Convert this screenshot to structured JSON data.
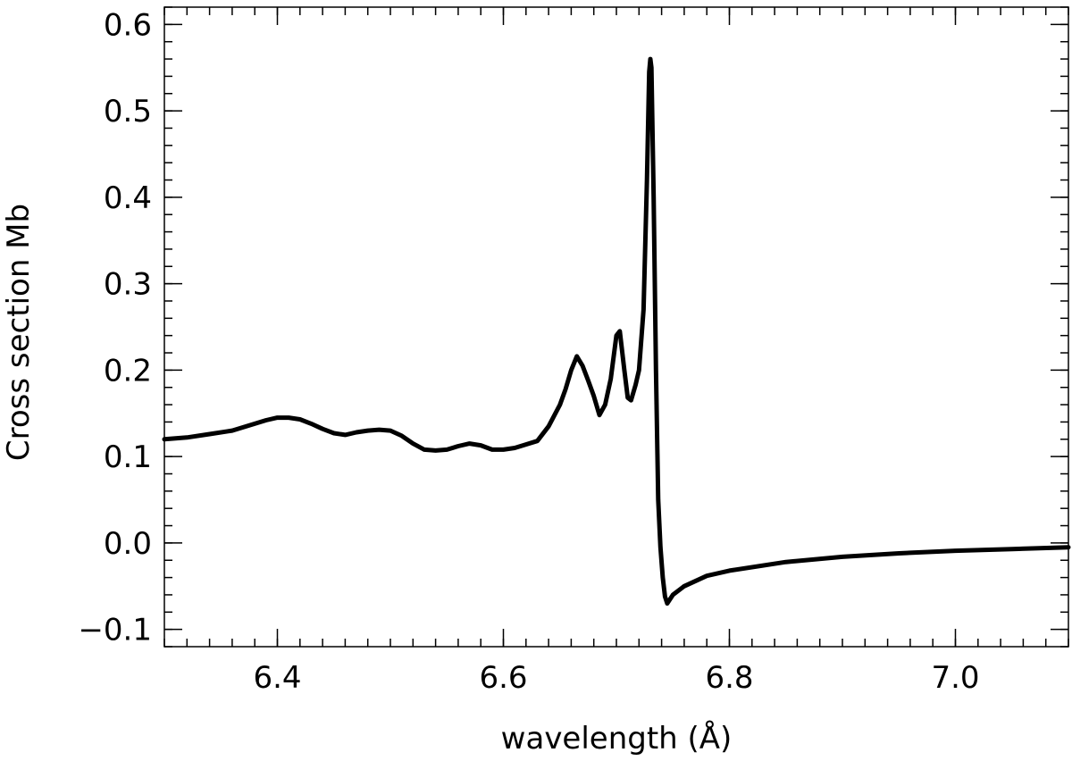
{
  "chart_data": {
    "type": "line",
    "title": "",
    "xlabel": "wavelength (Å)",
    "ylabel": "Cross section Mb",
    "xlim": [
      6.3,
      7.1
    ],
    "ylim": [
      -0.12,
      0.62
    ],
    "x_ticks": [
      6.4,
      6.6,
      6.8,
      7.0
    ],
    "x_tick_labels": [
      "6.4",
      "6.6",
      "6.8",
      "7.0"
    ],
    "x_minor_step": 0.02,
    "y_ticks": [
      -0.1,
      0.0,
      0.1,
      0.2,
      0.3,
      0.4,
      0.5,
      0.6
    ],
    "y_tick_labels": [
      "−0.1",
      "0.0",
      "0.1",
      "0.2",
      "0.3",
      "0.4",
      "0.5",
      "0.6"
    ],
    "y_minor_step": 0.02,
    "grid": false,
    "legend": "none",
    "line_color": "#000000",
    "series": [
      {
        "x": [
          6.3,
          6.32,
          6.34,
          6.36,
          6.38,
          6.39,
          6.4,
          6.41,
          6.42,
          6.43,
          6.44,
          6.45,
          6.46,
          6.47,
          6.48,
          6.49,
          6.5,
          6.51,
          6.52,
          6.53,
          6.54,
          6.55,
          6.56,
          6.57,
          6.58,
          6.59,
          6.6,
          6.61,
          6.62,
          6.63,
          6.64,
          6.65,
          6.655,
          6.66,
          6.665,
          6.67,
          6.675,
          6.68,
          6.685,
          6.69,
          6.695,
          6.7,
          6.703,
          6.707,
          6.71,
          6.713,
          6.717,
          6.72,
          6.724,
          6.727,
          6.729,
          6.73,
          6.731,
          6.733,
          6.735,
          6.737,
          6.739,
          6.741,
          6.743,
          6.745,
          6.75,
          6.76,
          6.78,
          6.8,
          6.85,
          6.9,
          6.95,
          7.0,
          7.05,
          7.1
        ],
        "y": [
          0.12,
          0.122,
          0.126,
          0.13,
          0.138,
          0.142,
          0.145,
          0.145,
          0.143,
          0.138,
          0.132,
          0.127,
          0.125,
          0.128,
          0.13,
          0.131,
          0.13,
          0.124,
          0.115,
          0.108,
          0.107,
          0.108,
          0.112,
          0.115,
          0.113,
          0.108,
          0.108,
          0.11,
          0.114,
          0.118,
          0.135,
          0.16,
          0.178,
          0.2,
          0.216,
          0.205,
          0.188,
          0.17,
          0.148,
          0.16,
          0.19,
          0.24,
          0.245,
          0.2,
          0.168,
          0.165,
          0.183,
          0.2,
          0.27,
          0.42,
          0.545,
          0.56,
          0.55,
          0.4,
          0.2,
          0.05,
          -0.005,
          -0.04,
          -0.062,
          -0.07,
          -0.06,
          -0.05,
          -0.038,
          -0.032,
          -0.022,
          -0.016,
          -0.012,
          -0.009,
          -0.007,
          -0.005
        ]
      }
    ]
  }
}
